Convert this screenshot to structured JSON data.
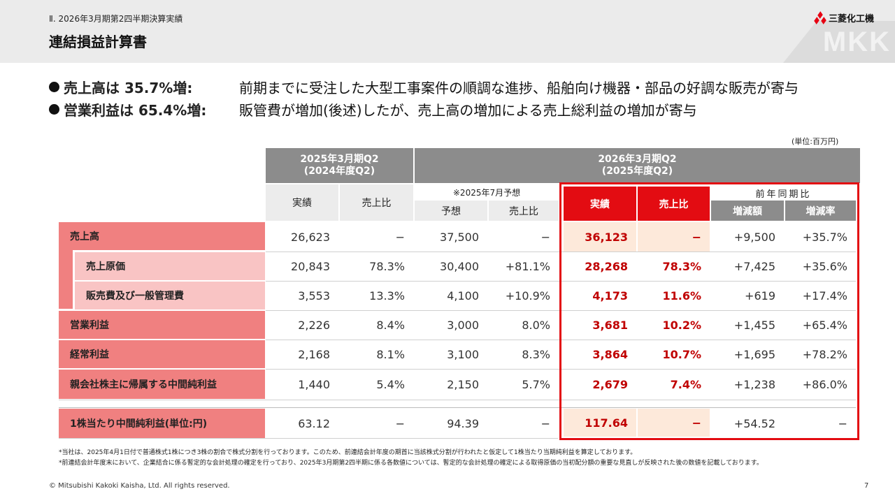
{
  "header": {
    "section": "Ⅱ. 2026年3月期第2四半期決算実績",
    "title": "連結損益計算書",
    "logo_text": "三菱化工機",
    "watermark": "MKK"
  },
  "bullets": [
    {
      "lead": "売上高は 35.7%増:",
      "desc": "前期までに受注した大型工事案件の順調な進捗、船舶向け機器・部品の好調な販売が寄与"
    },
    {
      "lead": "営業利益は 65.4%増:",
      "desc": "販管費が増加(後述)したが、売上高の増加による売上総利益の増加が寄与"
    }
  ],
  "unit": "(単位:百万円)",
  "table": {
    "group_prev": "2025年3月期Q2",
    "group_prev_sub": "(2024年度Q2)",
    "group_curr": "2026年3月期Q2",
    "group_curr_sub": "(2025年度Q2)",
    "col_actual": "実績",
    "col_ratio": "売上比",
    "forecast_note": "※2025年7月予想",
    "col_forecast": "予想",
    "col_forecast_ratio": "売上比",
    "col_curr_actual": "実績",
    "col_curr_ratio": "売上比",
    "yoy_label": "前年同期比",
    "col_change": "増減額",
    "col_change_rate": "増減率",
    "rows": [
      {
        "label": "売上高",
        "prev": "26,623",
        "prev_ratio": "−",
        "fc": "37,500",
        "fc_ratio": "−",
        "cur": "36,123",
        "cur_ratio": "−",
        "chg": "+9,500",
        "rate": "+35.7%"
      },
      {
        "label": "売上原価",
        "prev": "20,843",
        "prev_ratio": "78.3%",
        "fc": "30,400",
        "fc_ratio": "+81.1%",
        "cur": "28,268",
        "cur_ratio": "78.3%",
        "chg": "+7,425",
        "rate": "+35.6%"
      },
      {
        "label": "販売費及び一般管理費",
        "prev": "3,553",
        "prev_ratio": "13.3%",
        "fc": "4,100",
        "fc_ratio": "+10.9%",
        "cur": "4,173",
        "cur_ratio": "11.6%",
        "chg": "+619",
        "rate": "+17.4%"
      },
      {
        "label": "営業利益",
        "prev": "2,226",
        "prev_ratio": "8.4%",
        "fc": "3,000",
        "fc_ratio": "8.0%",
        "cur": "3,681",
        "cur_ratio": "10.2%",
        "chg": "+1,455",
        "rate": "+65.4%"
      },
      {
        "label": "経常利益",
        "prev": "2,168",
        "prev_ratio": "8.1%",
        "fc": "3,100",
        "fc_ratio": "8.3%",
        "cur": "3,864",
        "cur_ratio": "10.7%",
        "chg": "+1,695",
        "rate": "+78.2%"
      },
      {
        "label": "親会社株主に帰属する中間純利益",
        "prev": "1,440",
        "prev_ratio": "5.4%",
        "fc": "2,150",
        "fc_ratio": "5.7%",
        "cur": "2,679",
        "cur_ratio": "7.4%",
        "chg": "+1,238",
        "rate": "+86.0%"
      },
      {
        "label": "1株当たり中間純利益(単位:円)",
        "prev": "63.12",
        "prev_ratio": "−",
        "fc": "94.39",
        "fc_ratio": "−",
        "cur": "117.64",
        "cur_ratio": "−",
        "chg": "+54.52",
        "rate": "−"
      }
    ]
  },
  "notes": [
    "*当社は、2025年4月1日付で普通株式1株につき3株の割合で株式分割を行っております。このため、前連結会計年度の期首に当該株式分割が行われたと仮定して1株当たり当期純利益を算定しております。",
    "*前連結会計年度末において、企業結合に係る暫定的な会計処理の確定を行っており、2025年3月期第2四半期に係る各数値については、暫定的な会計処理の確定による取得原価の当初配分額の重要な見直しが反映された後の数値を記載しております。"
  ],
  "footer": "© Mitsubishi Kakoki Kaisha, Ltd. All rights reserved.",
  "page_number": "7"
}
